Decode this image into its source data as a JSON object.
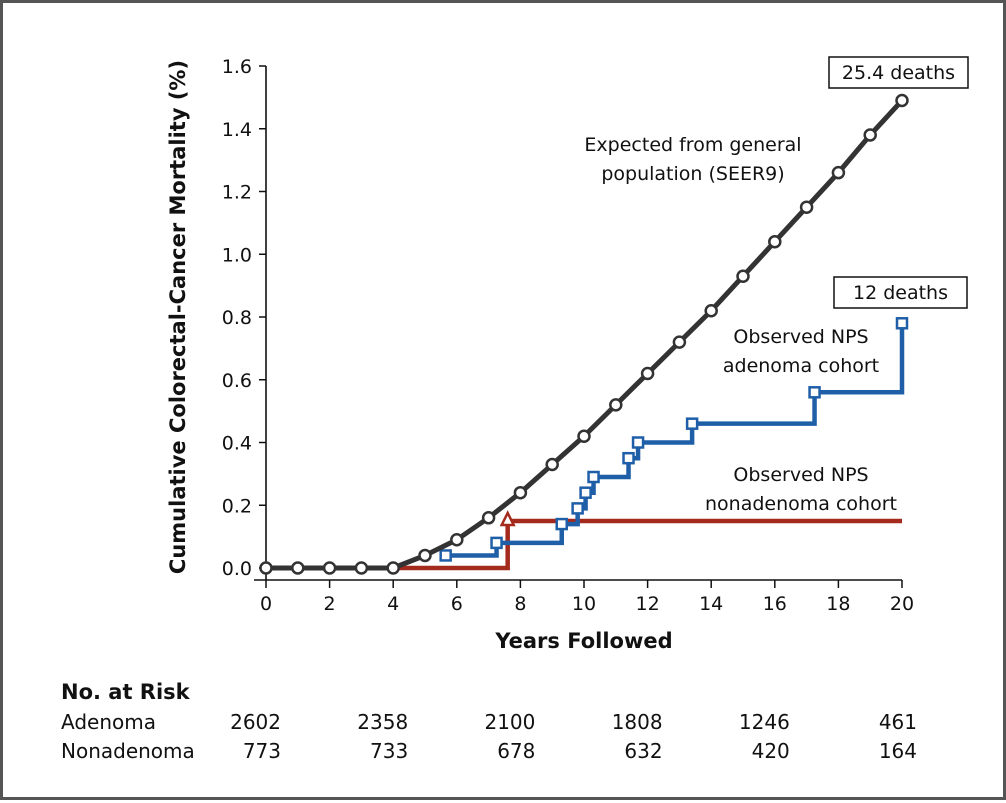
{
  "chart_data": {
    "type": "line",
    "xlabel": "Years Followed",
    "ylabel": "Cumulative Colorectal-Cancer Mortality (%)",
    "xlim": [
      0,
      20
    ],
    "ylim": [
      0,
      1.6
    ],
    "x_ticks": [
      "0",
      "2",
      "4",
      "6",
      "8",
      "10",
      "12",
      "14",
      "16",
      "18",
      "20"
    ],
    "y_ticks": [
      "0.0",
      "0.2",
      "0.4",
      "0.6",
      "0.8",
      "1.0",
      "1.2",
      "1.4",
      "1.6"
    ],
    "grid": false,
    "series": [
      {
        "name_lines": [
          "Expected from general",
          "population (SEER9)"
        ],
        "color": "#333333",
        "marker": "circle",
        "step": false,
        "x": [
          0,
          1,
          2,
          3,
          4,
          5,
          6,
          7,
          8,
          9,
          10,
          11,
          12,
          13,
          14,
          15,
          16,
          17,
          18,
          19,
          20
        ],
        "y": [
          0.0,
          0.0,
          0.0,
          0.0,
          0.0,
          0.04,
          0.09,
          0.16,
          0.24,
          0.33,
          0.42,
          0.52,
          0.62,
          0.72,
          0.82,
          0.93,
          1.04,
          1.15,
          1.26,
          1.38,
          1.49
        ],
        "end_label": "25.4 deaths"
      },
      {
        "name_lines": [
          "Observed NPS",
          "adenoma cohort"
        ],
        "color": "#1f5fa8",
        "marker": "square",
        "step": true,
        "x": [
          5.65,
          7.25,
          9.3,
          9.8,
          10.05,
          10.3,
          11.4,
          11.7,
          13.4,
          17.25,
          20.0
        ],
        "y": [
          0.04,
          0.08,
          0.14,
          0.19,
          0.24,
          0.29,
          0.35,
          0.4,
          0.46,
          0.56,
          0.78
        ],
        "end_label": "12 deaths"
      },
      {
        "name_lines": [
          "Observed NPS",
          "nonadenoma cohort"
        ],
        "color": "#a52a1e",
        "marker": "triangle",
        "step": true,
        "x": [
          0,
          7.6,
          20.0
        ],
        "y": [
          0,
          0.15,
          0.15
        ]
      }
    ]
  },
  "risk_table": {
    "title": "No. at Risk",
    "rows": [
      {
        "label": "Adenoma",
        "values": [
          "2602",
          "2358",
          "2100",
          "1808",
          "1246",
          "461"
        ]
      },
      {
        "label": "Nonadenoma",
        "values": [
          "773",
          "733",
          "678",
          "632",
          "420",
          "164"
        ]
      }
    ]
  }
}
